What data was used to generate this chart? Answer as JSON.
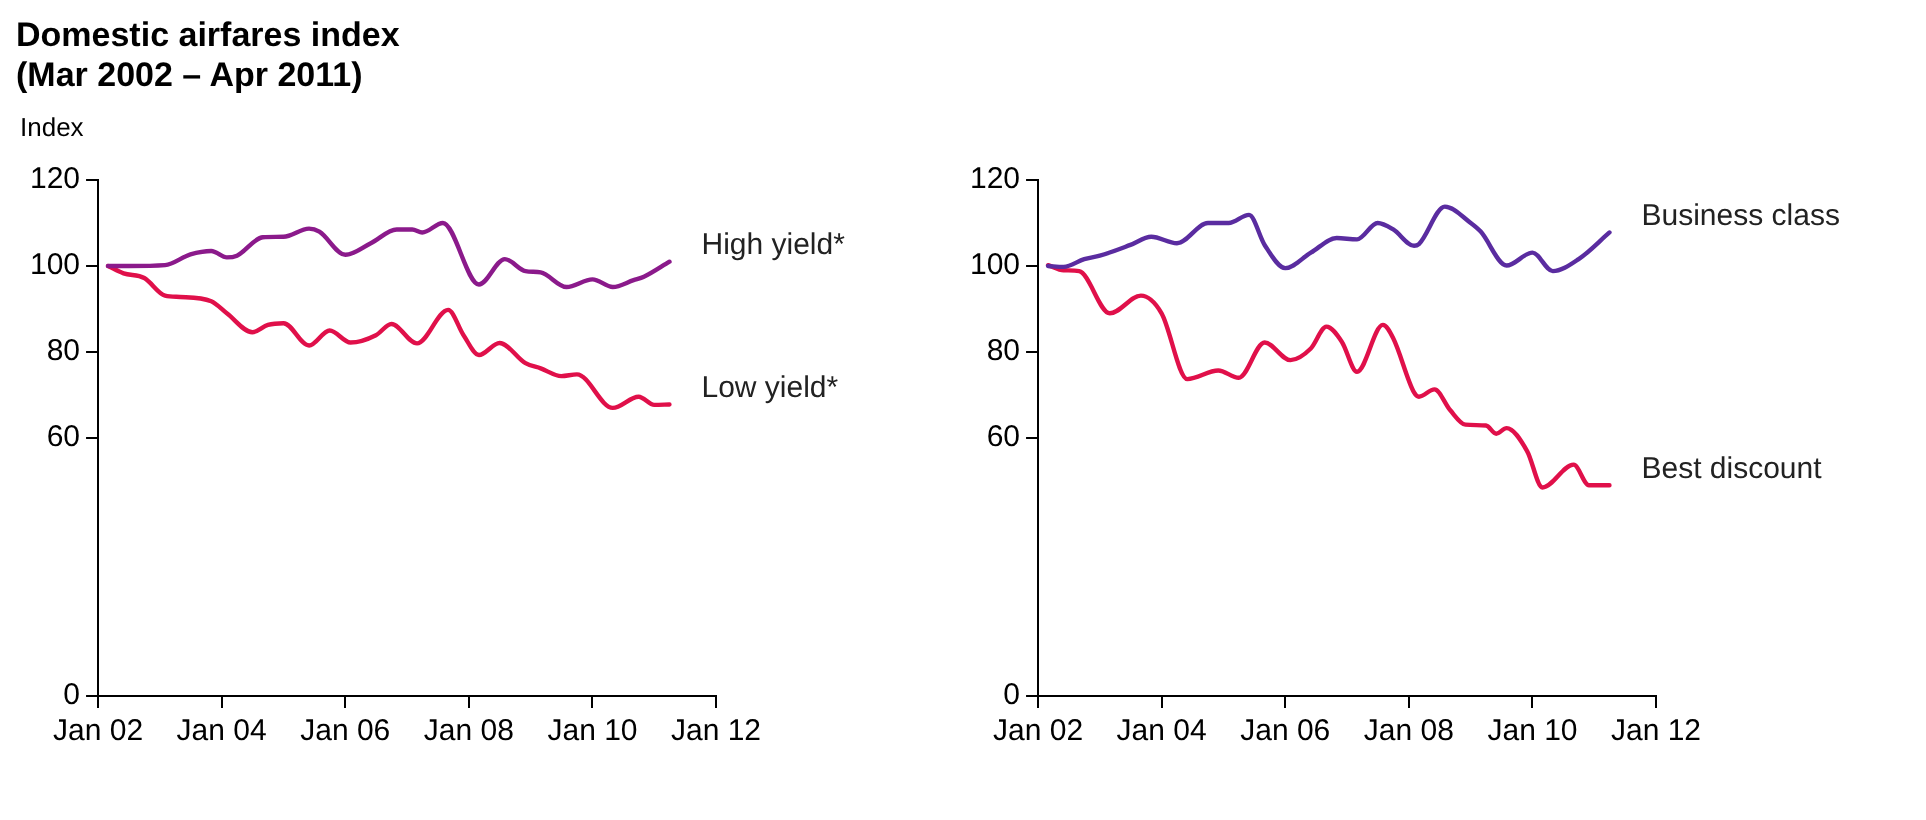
{
  "chart_data": [
    {
      "type": "line",
      "title": "Domestic airfares index",
      "subtitle": "(Mar 2002 – Apr 2011)",
      "ylabel": "Index",
      "xlim": [
        "2002-01",
        "2012-01"
      ],
      "xticks": [
        {
          "value": "2002-01",
          "label": "Jan 02"
        },
        {
          "value": "2004-01",
          "label": "Jan 04"
        },
        {
          "value": "2006-01",
          "label": "Jan 06"
        },
        {
          "value": "2008-01",
          "label": "Jan 08"
        },
        {
          "value": "2010-01",
          "label": "Jan 10"
        },
        {
          "value": "2012-01",
          "label": "Jan 12"
        }
      ],
      "ylim": [
        0,
        120
      ],
      "yticks": [
        0,
        60,
        80,
        100,
        120
      ],
      "grid": false,
      "legend": false,
      "marker": "none",
      "line_style": "solid",
      "series": [
        {
          "name": "High yield*",
          "color": "#8b1a8b",
          "x": [
            "2002-03",
            "2002-07",
            "2003-02",
            "2003-07",
            "2003-11",
            "2004-02",
            "2004-04",
            "2004-09",
            "2005-01",
            "2005-06",
            "2005-08",
            "2006-01",
            "2006-06",
            "2006-11",
            "2007-02",
            "2007-04",
            "2007-08",
            "2008-03",
            "2008-08",
            "2008-12",
            "2009-03",
            "2009-08",
            "2010-01",
            "2010-05",
            "2010-09",
            "2010-11",
            "2011-04"
          ],
          "values": [
            100,
            100,
            100.2,
            102.7,
            103.5,
            102,
            102.4,
            106.7,
            106.8,
            108.7,
            108,
            102.6,
            105.3,
            108.5,
            108.5,
            107.8,
            110,
            95.7,
            101.6,
            98.8,
            98.5,
            95.1,
            96.9,
            95.1,
            96.7,
            97.5,
            101
          ]
        },
        {
          "name": "Low yield*",
          "color": "#e0104a",
          "x": [
            "2002-03",
            "2002-06",
            "2002-10",
            "2003-02",
            "2003-05",
            "2003-11",
            "2004-02",
            "2004-07",
            "2004-10",
            "2005-01",
            "2005-06",
            "2005-10",
            "2006-02",
            "2006-07",
            "2006-10",
            "2007-03",
            "2007-09",
            "2007-12",
            "2008-03",
            "2008-07",
            "2008-12",
            "2009-03",
            "2009-07",
            "2009-10",
            "2010-05",
            "2010-10",
            "2011-01",
            "2011-04"
          ],
          "values": [
            100,
            98.3,
            97.2,
            93.1,
            92.8,
            91.8,
            89,
            84.6,
            86.3,
            86.7,
            81.5,
            85,
            82.2,
            83.9,
            86.5,
            82,
            89.8,
            83.9,
            79.3,
            82.1,
            77.4,
            76.2,
            74.4,
            74.8,
            67,
            69.6,
            67.7,
            67.8
          ]
        }
      ]
    },
    {
      "type": "line",
      "xlim": [
        "2002-01",
        "2012-01"
      ],
      "xticks": [
        {
          "value": "2002-01",
          "label": "Jan 02"
        },
        {
          "value": "2004-01",
          "label": "Jan 04"
        },
        {
          "value": "2006-01",
          "label": "Jan 06"
        },
        {
          "value": "2008-01",
          "label": "Jan 08"
        },
        {
          "value": "2010-01",
          "label": "Jan 10"
        },
        {
          "value": "2012-01",
          "label": "Jan 12"
        }
      ],
      "ylim": [
        0,
        120
      ],
      "yticks": [
        0,
        60,
        80,
        100,
        120
      ],
      "grid": false,
      "legend": false,
      "marker": "none",
      "line_style": "solid",
      "series": [
        {
          "name": "Business class",
          "color": "#5a2ca0",
          "x": [
            "2002-03",
            "2002-06",
            "2002-10",
            "2003-01",
            "2003-07",
            "2003-11",
            "2004-04",
            "2004-10",
            "2005-02",
            "2005-06",
            "2005-09",
            "2006-01",
            "2006-06",
            "2006-11",
            "2007-03",
            "2007-07",
            "2007-10",
            "2008-02",
            "2008-03",
            "2008-08",
            "2009-01",
            "2009-03",
            "2009-08",
            "2010-01",
            "2010-05",
            "2010-10",
            "2011-04"
          ],
          "values": [
            100,
            99.8,
            101.6,
            102.4,
            104.9,
            106.8,
            105.3,
            110,
            110,
            111.9,
            104.9,
            99.5,
            103.1,
            106.5,
            106.2,
            110,
            108.5,
            104.7,
            105.1,
            113.8,
            110,
            108,
            100.1,
            103.1,
            98.8,
            101.6,
            107.8
          ]
        },
        {
          "name": "Best discount",
          "color": "#e0104a",
          "x": [
            "2002-03",
            "2002-06",
            "2002-09",
            "2003-03",
            "2003-09",
            "2004-01",
            "2004-06",
            "2004-12",
            "2005-04",
            "2005-09",
            "2006-02",
            "2006-06",
            "2006-09",
            "2006-12",
            "2007-03",
            "2007-08",
            "2007-10",
            "2008-02",
            "2008-03",
            "2008-06",
            "2008-09",
            "2008-12",
            "2009-04",
            "2009-06",
            "2009-08",
            "2009-12",
            "2010-03",
            "2010-09",
            "2010-12",
            "2011-04"
          ],
          "values": [
            100.2,
            99,
            98.8,
            89,
            93.1,
            89,
            73.7,
            75.7,
            74,
            82.2,
            78.1,
            80.8,
            85.9,
            82.4,
            75.4,
            86.3,
            83.2,
            70.6,
            69.6,
            71.3,
            66.5,
            63.1,
            62.9,
            61,
            62.3,
            56.9,
            48.5,
            53.8,
            49,
            49
          ]
        }
      ]
    }
  ]
}
